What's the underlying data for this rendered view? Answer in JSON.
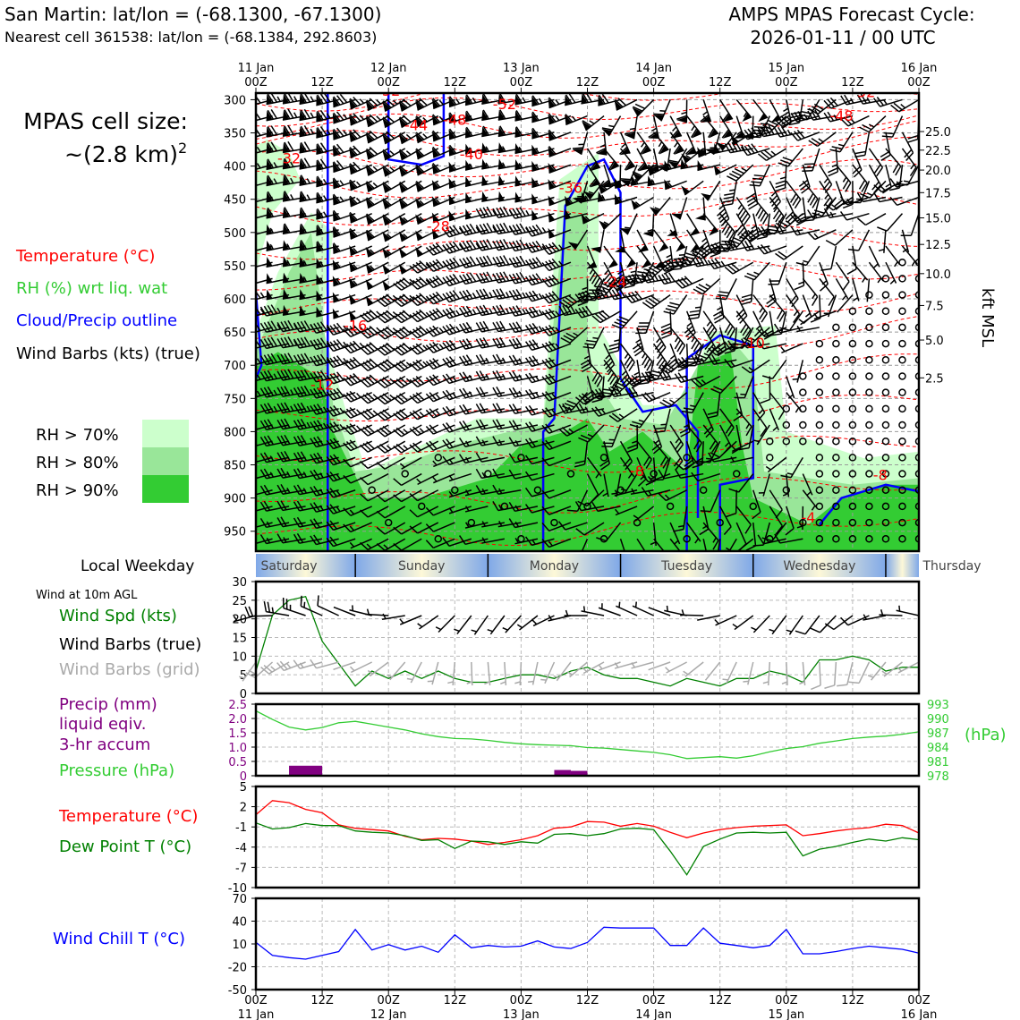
{
  "header": {
    "site_line": "San Martin: lat/lon = (-68.1300, -67.1300)",
    "cell_line": "Nearest cell 361538: lat/lon = (-68.1384, 292.8603)",
    "cycle_title": "AMPS MPAS Forecast Cycle:",
    "cycle_date": "2026-01-11 / 00 UTC"
  },
  "left_legend": {
    "cell_size_title": "MPAS cell size:",
    "cell_size_value": "~(2.8 km)",
    "cell_size_exp": "2",
    "temperature": "Temperature (°C)",
    "rh": "RH (%) wrt liq. wat",
    "cloud": "Cloud/Precip outline",
    "barbs": "Wind Barbs (kts) (true)",
    "rh70": "RH > 70%",
    "rh80": "RH > 80%",
    "rh90": "RH > 90%",
    "local_weekday": "Local Weekday",
    "wind10m": "Wind at 10m AGL",
    "wind_spd": "Wind Spd (kts)",
    "barbs_true": "Wind Barbs (true)",
    "barbs_grid": "Wind Barbs (grid)",
    "precip1": "Precip (mm)",
    "precip2": "liquid eqiv.",
    "precip3": "3-hr accum",
    "pressure": "Pressure (hPa)",
    "temp2": "Temperature (°C)",
    "dew": "Dew Point T (°C)",
    "windchill": "Wind Chill T (°C)"
  },
  "colors": {
    "rh70": "#ccffcc",
    "rh80": "#99e699",
    "rh90": "#33cc33",
    "temp": "#ff0000",
    "cloud": "#0000ff",
    "green": "#008000",
    "precip": "#800080",
    "pressure": "#00b000",
    "windchill": "#0000ff"
  },
  "chart_data": [
    {
      "type": "time-height cross-section",
      "top_axis": {
        "ticks": [
          {
            "day": "11 Jan",
            "hour": "00Z"
          },
          {
            "day": "",
            "hour": "12Z"
          },
          {
            "day": "12 Jan",
            "hour": "00Z"
          },
          {
            "day": "",
            "hour": "12Z"
          },
          {
            "day": "13 Jan",
            "hour": "00Z"
          },
          {
            "day": "",
            "hour": "12Z"
          },
          {
            "day": "14 Jan",
            "hour": "00Z"
          },
          {
            "day": "",
            "hour": "12Z"
          },
          {
            "day": "15 Jan",
            "hour": "00Z"
          },
          {
            "day": "",
            "hour": "12Z"
          },
          {
            "day": "16 Jan",
            "hour": "00Z"
          }
        ],
        "hours": [
          0,
          12,
          24,
          36,
          48,
          60,
          72,
          84,
          96,
          108,
          120
        ]
      },
      "y_pressure_ticks": [
        300,
        350,
        400,
        450,
        500,
        550,
        600,
        650,
        700,
        750,
        800,
        850,
        900,
        950
      ],
      "ylim_hpa": [
        980,
        290
      ],
      "right_axis_label": "kft MSL",
      "kft_ticks": [
        {
          "label": "25.0",
          "p": 348
        },
        {
          "label": "22.5",
          "p": 376
        },
        {
          "label": "20.0",
          "p": 406
        },
        {
          "label": "17.5",
          "p": 440
        },
        {
          "label": "15.0",
          "p": 478
        },
        {
          "label": "12.5",
          "p": 518
        },
        {
          "label": "10.0",
          "p": 562
        },
        {
          "label": "7.5",
          "p": 610
        },
        {
          "label": "5.0",
          "p": 662
        },
        {
          "label": "2.5",
          "p": 719
        }
      ],
      "temperature_labels": [
        {
          "text": "-52",
          "t": 24,
          "p": 294
        },
        {
          "text": "-52",
          "t": 45,
          "p": 314
        },
        {
          "text": "-48",
          "t": 36,
          "p": 338
        },
        {
          "text": "-44",
          "t": 29,
          "p": 346
        },
        {
          "text": "-40",
          "t": 39,
          "p": 390
        },
        {
          "text": "-36",
          "t": 57,
          "p": 440
        },
        {
          "text": "-32",
          "t": 6,
          "p": 396
        },
        {
          "text": "-28",
          "t": 33,
          "p": 498
        },
        {
          "text": "-24",
          "t": 65,
          "p": 582
        },
        {
          "text": "-16",
          "t": 18,
          "p": 648
        },
        {
          "text": "-12",
          "t": 12,
          "p": 737
        },
        {
          "text": "-10",
          "t": 90,
          "p": 674
        },
        {
          "text": "-8",
          "t": 69,
          "p": 867
        },
        {
          "text": "-8",
          "t": 113,
          "p": 873
        },
        {
          "text": "-52",
          "t": 110,
          "p": 296
        },
        {
          "text": "-48",
          "t": 106,
          "p": 332
        },
        {
          "text": "-4",
          "t": 100,
          "p": 937
        }
      ]
    },
    {
      "type": "line",
      "title": "Wind at 10m AGL",
      "xlabel": "",
      "ylabel": "Wind Spd (kts)",
      "ylim": [
        0,
        30
      ],
      "yticks": [
        0,
        5,
        10,
        15,
        20,
        25,
        30
      ],
      "x_hours": [
        0,
        3,
        6,
        9,
        12,
        15,
        18,
        21,
        24,
        27,
        30,
        33,
        36,
        39,
        42,
        45,
        48,
        51,
        54,
        57,
        60,
        63,
        66,
        69,
        72,
        75,
        78,
        81,
        84,
        87,
        90,
        93,
        96,
        99,
        102,
        105,
        108,
        111,
        114,
        117,
        120
      ],
      "series": [
        {
          "name": "Wind Spd (kts)",
          "values": [
            6,
            21,
            25,
            26,
            14,
            8,
            2,
            6,
            4,
            6,
            4,
            6,
            4,
            3,
            3,
            4,
            5,
            5,
            4,
            6,
            7,
            5,
            4,
            4,
            3,
            2,
            4,
            3,
            2,
            4,
            4,
            6,
            5,
            3,
            9,
            9,
            10,
            9,
            6,
            7,
            7
          ]
        }
      ]
    },
    {
      "type": "bar+line",
      "ylabel_left": "Precip (mm) liquid eqiv. 3-hr accum",
      "ylabel_right": "(hPa)",
      "ylim_left": [
        0,
        2.5
      ],
      "yticks_left": [
        "0",
        "0.5",
        "1.0",
        "1.5",
        "2.0",
        "2.5"
      ],
      "ylim_right": [
        978,
        993
      ],
      "yticks_right": [
        "978",
        "981",
        "984",
        "987",
        "990",
        "993"
      ],
      "precip_bars": [
        {
          "start_h": 6,
          "end_h": 12,
          "value": 0.35
        },
        {
          "start_h": 54,
          "end_h": 57,
          "value": 0.2
        },
        {
          "start_h": 57,
          "end_h": 60,
          "value": 0.17
        },
        {
          "start_h": 78,
          "end_h": 81,
          "value": 0.03
        }
      ],
      "pressure_hours": [
        0,
        3,
        6,
        9,
        12,
        15,
        18,
        21,
        24,
        27,
        30,
        33,
        36,
        39,
        42,
        45,
        48,
        51,
        54,
        57,
        60,
        63,
        66,
        69,
        72,
        75,
        78,
        81,
        84,
        87,
        90,
        93,
        96,
        99,
        102,
        105,
        108,
        111,
        114,
        117,
        120
      ],
      "pressure_values": [
        991.6,
        989.8,
        988.2,
        987.6,
        988.1,
        989.1,
        989.4,
        988.8,
        988.2,
        987.6,
        986.8,
        986.2,
        985.8,
        985.7,
        985.4,
        985.0,
        984.7,
        984.5,
        984.4,
        984.3,
        983.9,
        983.8,
        983.5,
        983.2,
        982.9,
        982.4,
        981.6,
        981.8,
        982.0,
        981.7,
        982.2,
        983.0,
        983.7,
        984.1,
        984.8,
        985.3,
        985.8,
        986.1,
        986.3,
        986.7,
        987.2
      ]
    },
    {
      "type": "line",
      "ylim": [
        -10,
        5
      ],
      "yticks": [
        "-10",
        "-7",
        "-4",
        "-1",
        "2",
        "5"
      ],
      "x_hours": [
        0,
        3,
        6,
        9,
        12,
        15,
        18,
        21,
        24,
        27,
        30,
        33,
        36,
        39,
        42,
        45,
        48,
        51,
        54,
        57,
        60,
        63,
        66,
        69,
        72,
        75,
        78,
        81,
        84,
        87,
        90,
        93,
        96,
        99,
        102,
        105,
        108,
        111,
        114,
        117,
        120
      ],
      "series": [
        {
          "name": "Temperature (°C)",
          "values": [
            0.8,
            2.9,
            2.6,
            1.6,
            1.1,
            -0.7,
            -1.2,
            -1.4,
            -1.6,
            -2.4,
            -2.9,
            -2.7,
            -2.8,
            -3.1,
            -3.6,
            -3.3,
            -2.9,
            -2.3,
            -1.2,
            -1.0,
            -0.2,
            -0.3,
            -0.9,
            -0.5,
            -0.9,
            -1.8,
            -2.6,
            -1.9,
            -1.4,
            -1.1,
            -0.9,
            -0.8,
            -0.7,
            -2.3,
            -2.0,
            -1.6,
            -1.3,
            -1.1,
            -0.6,
            -0.8,
            -1.9
          ]
        },
        {
          "name": "Dew Point T (°C)",
          "values": [
            -0.4,
            -1.3,
            -1.1,
            -0.5,
            -0.8,
            -0.8,
            -1.6,
            -1.8,
            -1.9,
            -2.3,
            -3.0,
            -2.9,
            -4.2,
            -3.1,
            -3.2,
            -3.6,
            -3.2,
            -3.4,
            -2.1,
            -2.0,
            -2.3,
            -2.0,
            -1.3,
            -1.2,
            -1.4,
            -4.6,
            -8.1,
            -3.9,
            -2.8,
            -1.9,
            -1.8,
            -1.9,
            -1.8,
            -5.3,
            -4.3,
            -3.9,
            -3.3,
            -2.8,
            -3.1,
            -2.6,
            -2.9
          ]
        }
      ]
    },
    {
      "type": "line",
      "ylim": [
        -50,
        70
      ],
      "yticks": [
        "-50",
        "-20",
        "10",
        "40",
        "70"
      ],
      "xticks_bottom": [
        {
          "hour": "00Z",
          "day": "11 Jan"
        },
        {
          "hour": "12Z",
          "day": ""
        },
        {
          "hour": "00Z",
          "day": "12 Jan"
        },
        {
          "hour": "12Z",
          "day": ""
        },
        {
          "hour": "00Z",
          "day": "13 Jan"
        },
        {
          "hour": "12Z",
          "day": ""
        },
        {
          "hour": "00Z",
          "day": "14 Jan"
        },
        {
          "hour": "12Z",
          "day": ""
        },
        {
          "hour": "00Z",
          "day": "15 Jan"
        },
        {
          "hour": "12Z",
          "day": ""
        },
        {
          "hour": "00Z",
          "day": "16 Jan"
        }
      ],
      "x_hours": [
        0,
        3,
        6,
        9,
        12,
        15,
        18,
        21,
        24,
        27,
        30,
        33,
        36,
        39,
        42,
        45,
        48,
        51,
        54,
        57,
        60,
        63,
        66,
        69,
        72,
        75,
        78,
        81,
        84,
        87,
        90,
        93,
        96,
        99,
        102,
        105,
        108,
        111,
        114,
        117,
        120
      ],
      "series": [
        {
          "name": "Wind Chill T (°C)",
          "values": [
            12,
            -5,
            -8,
            -10,
            -5,
            0,
            29,
            2,
            9,
            2,
            7,
            -1,
            22,
            5,
            8,
            6,
            7,
            14,
            6,
            4,
            12,
            32,
            31,
            31,
            31,
            8,
            8,
            31,
            11,
            8,
            5,
            8,
            29,
            -3,
            -3,
            0,
            4,
            7,
            5,
            3,
            -2
          ]
        }
      ]
    }
  ],
  "weekdays": [
    "Saturday",
    "Sunday",
    "Monday",
    "Tuesday",
    "Wednesday",
    "Thursday"
  ]
}
